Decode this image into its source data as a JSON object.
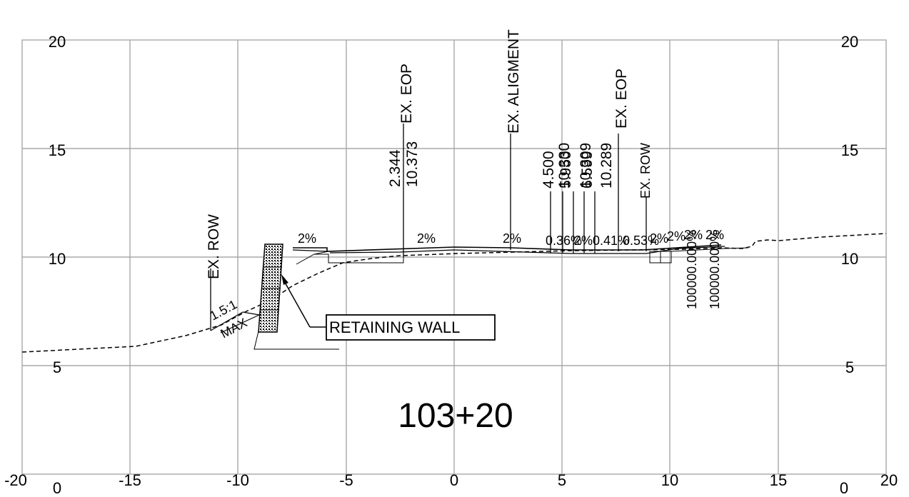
{
  "station": "103+20",
  "axes": {
    "x_ticks": [
      "-20",
      "-15",
      "-10",
      "-5",
      "0",
      "5",
      "10",
      "15",
      "20"
    ],
    "y_left": [
      "20",
      "15",
      "10",
      "5",
      "0"
    ],
    "y_right": [
      "20",
      "15",
      "10",
      "5",
      "0"
    ]
  },
  "labels": {
    "ex_row_left": "EX. ROW",
    "ex_eop_left": "EX. EOP",
    "ex_alignment": "EX. ALIGMENT",
    "ex_eop_right": "EX. EOP",
    "ex_row_right": "EX. ROW",
    "retaining_wall": "RETAINING WALL",
    "slope_ratio": "1.5:1",
    "slope_max": "MAX"
  },
  "offsets": {
    "left_eop_a": "2.344",
    "left_eop_b": "10.373",
    "right_1": "4.500",
    "right_2": "10.330",
    "right_3": "5.950",
    "right_4": "10.309",
    "right_5": "6.599",
    "right_6": "10.289",
    "far_1": "100000.000%",
    "far_2": "100000.000%"
  },
  "slopes": {
    "s1": "2%",
    "s2": "2%",
    "s3": "2%",
    "s4": "0.36%",
    "s5": "2%",
    "s6": "0.41%",
    "s7": "0.53%",
    "s8": "2%",
    "s9": "2%",
    "s10": "2%",
    "s11": "2%"
  },
  "colors": {
    "grid": "#a8a8a8",
    "ink": "#000000",
    "background": "#ffffff"
  }
}
